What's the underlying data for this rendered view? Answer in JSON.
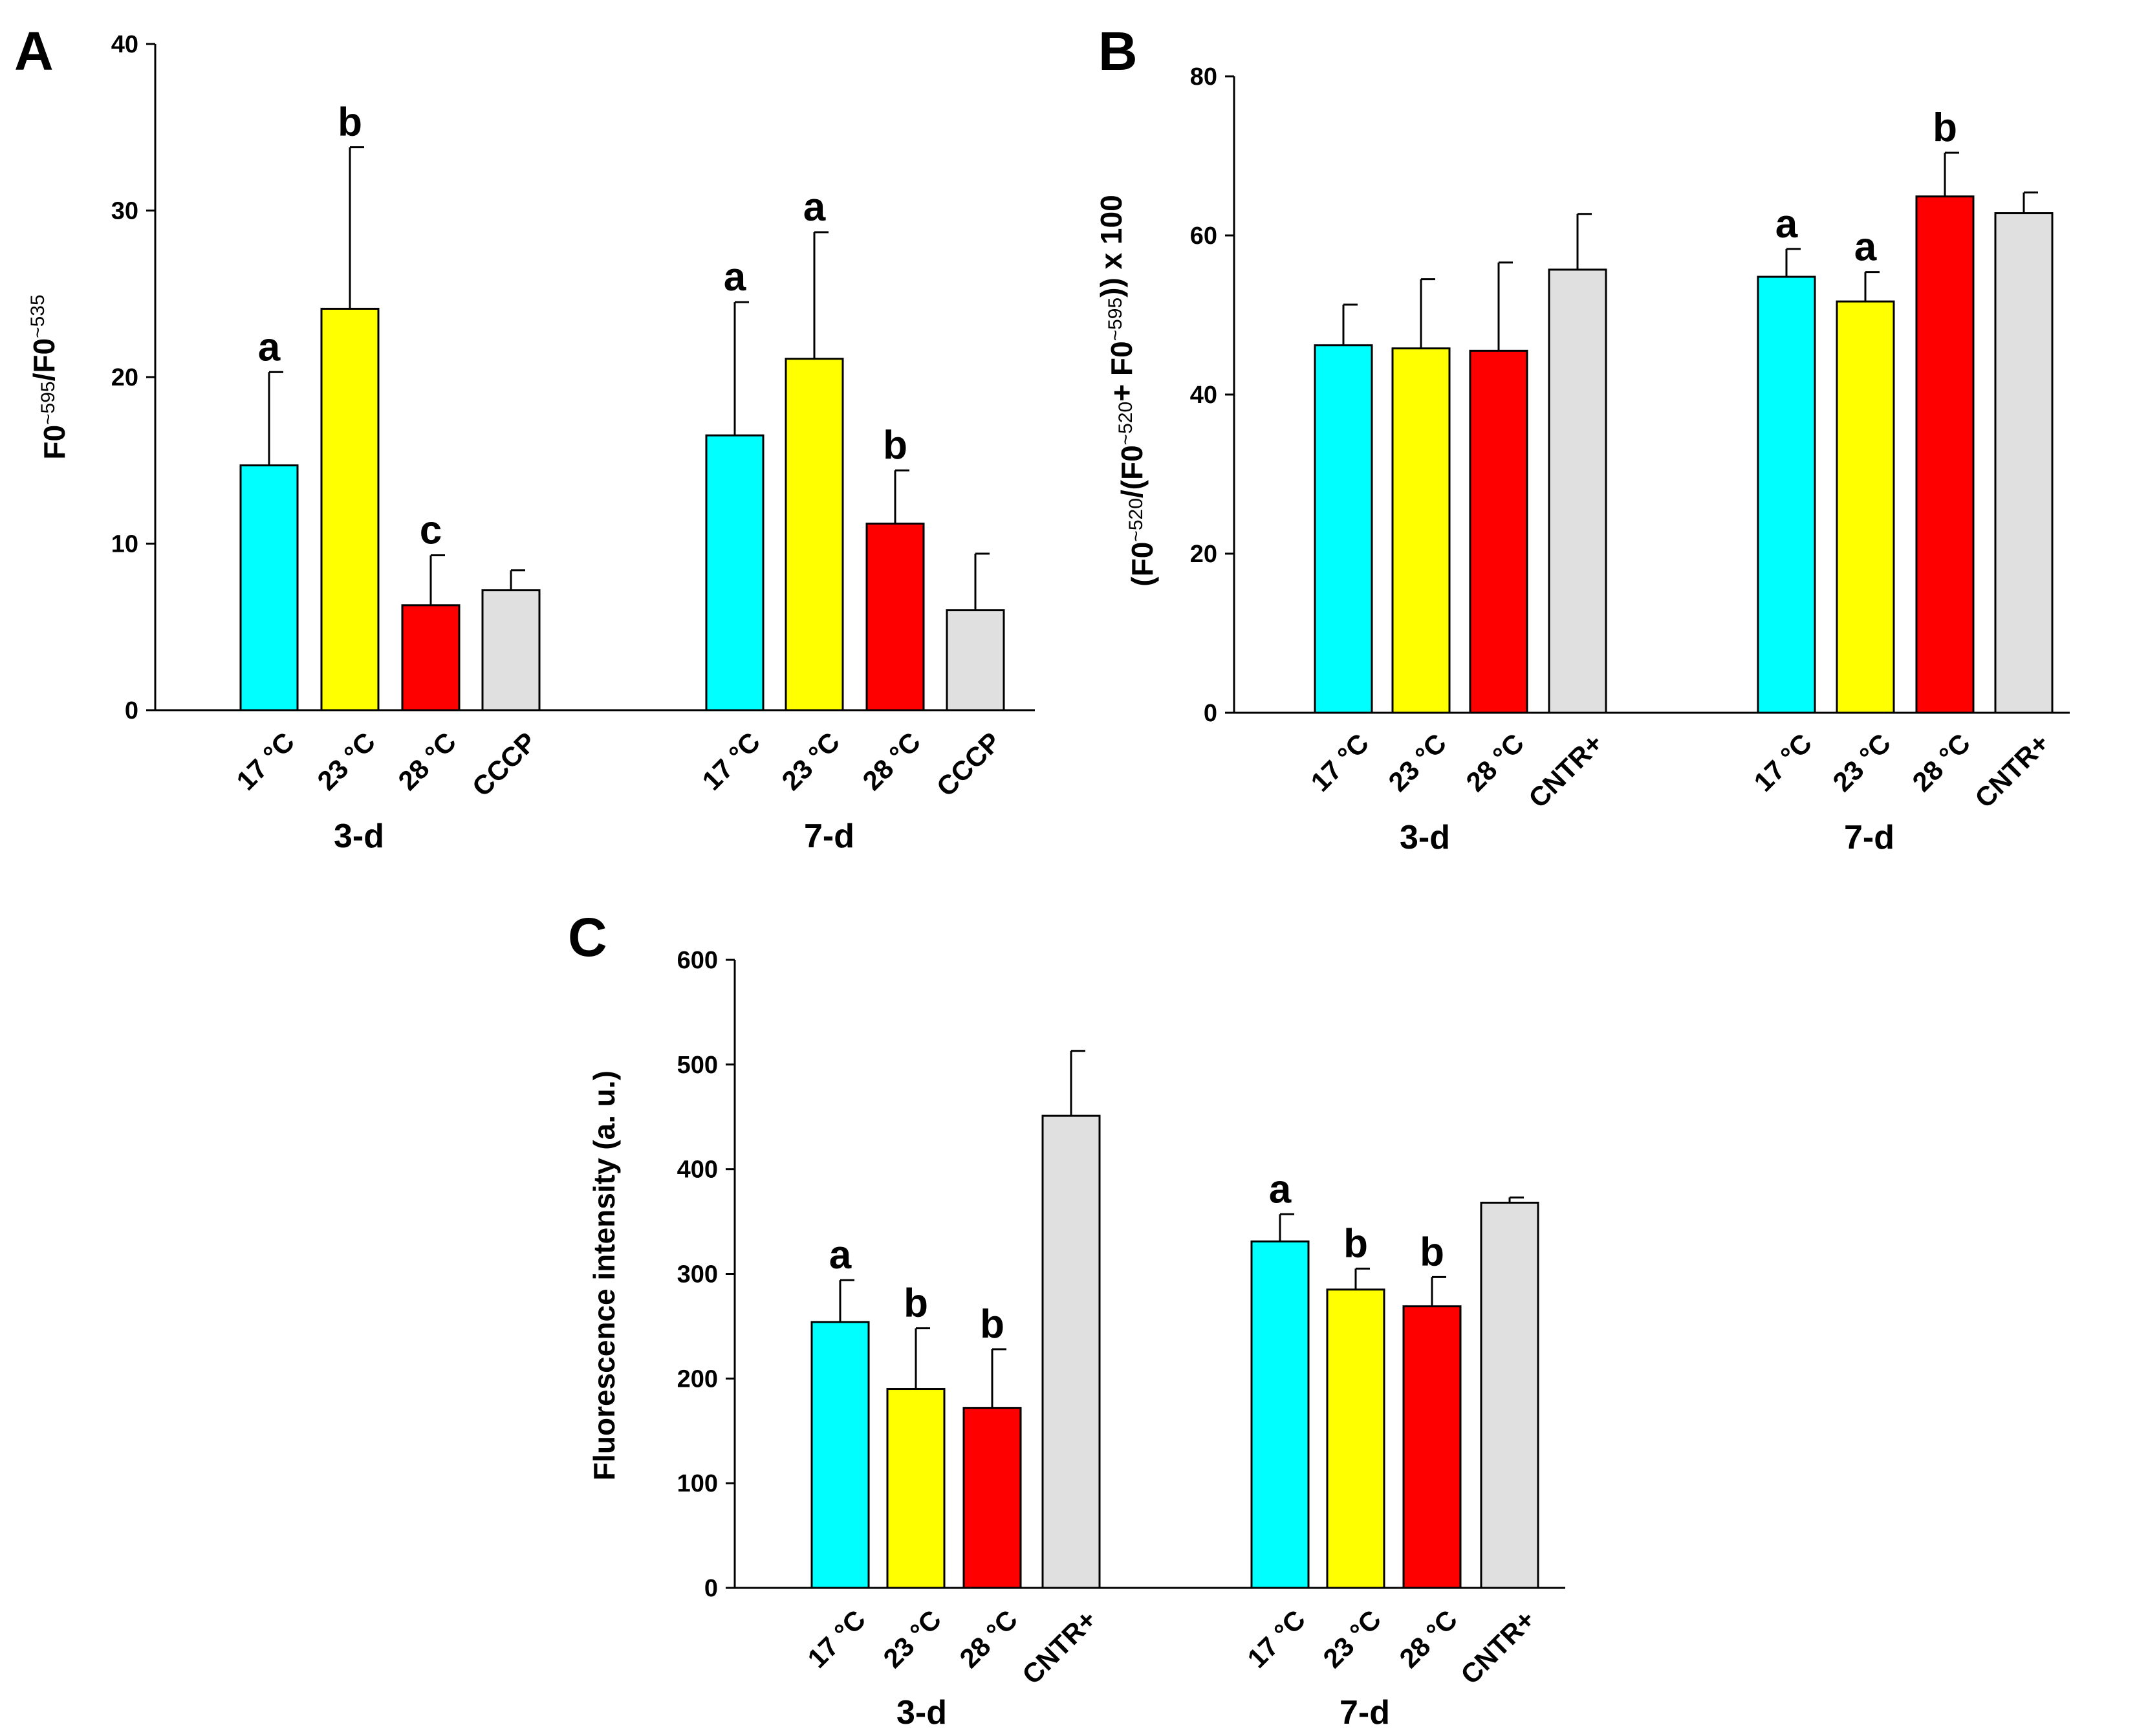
{
  "chart_data": [
    {
      "type": "bar",
      "panel": "A",
      "ylabel": "F0~595/F0~535",
      "ylabel_parts": [
        "F0",
        "~595",
        "/F0",
        "~535"
      ],
      "ylim": [
        0,
        40
      ],
      "yticks": [
        "0",
        "10",
        "20",
        "30",
        "40"
      ],
      "groups": [
        {
          "label": "3-d",
          "bars": [
            {
              "category": "17 °C",
              "value": 14.7,
              "error": 5.6,
              "sig": "a",
              "color": "#00ffff"
            },
            {
              "category": "23 °C",
              "value": 24.1,
              "error": 9.7,
              "sig": "b",
              "color": "#ffff00"
            },
            {
              "category": "28 °C",
              "value": 6.3,
              "error": 3.0,
              "sig": "c",
              "color": "#ff0000"
            },
            {
              "category": "CCCP",
              "value": 7.2,
              "error": 1.2,
              "sig": "",
              "color": "#e0e0e0"
            }
          ]
        },
        {
          "label": "7-d",
          "bars": [
            {
              "category": "17 °C",
              "value": 16.5,
              "error": 8.0,
              "sig": "a",
              "color": "#00ffff"
            },
            {
              "category": "23 °C",
              "value": 21.1,
              "error": 7.6,
              "sig": "a",
              "color": "#ffff00"
            },
            {
              "category": "28 °C",
              "value": 11.2,
              "error": 3.2,
              "sig": "b",
              "color": "#ff0000"
            },
            {
              "category": "CCCP",
              "value": 6.0,
              "error": 3.4,
              "sig": "",
              "color": "#e0e0e0"
            }
          ]
        }
      ]
    },
    {
      "type": "bar",
      "panel": "B",
      "ylabel": "(F0~520/(F0~520+ F0~595)) x 100",
      "ylabel_parts": [
        "(F0",
        "~520",
        "/(F0",
        "~520",
        "+ F0",
        "~595",
        ")) x 100"
      ],
      "ylim": [
        0,
        80
      ],
      "yticks": [
        "0",
        "20",
        "40",
        "60",
        "80"
      ],
      "groups": [
        {
          "label": "3-d",
          "bars": [
            {
              "category": "17 °C",
              "value": 46.2,
              "error": 5.1,
              "sig": "",
              "color": "#00ffff"
            },
            {
              "category": "23 °C",
              "value": 45.8,
              "error": 8.7,
              "sig": "",
              "color": "#ffff00"
            },
            {
              "category": "28 °C",
              "value": 45.5,
              "error": 11.1,
              "sig": "",
              "color": "#ff0000"
            },
            {
              "category": "CNTR+",
              "value": 55.7,
              "error": 7.0,
              "sig": "",
              "color": "#e0e0e0"
            }
          ]
        },
        {
          "label": "7-d",
          "bars": [
            {
              "category": "17 °C",
              "value": 54.8,
              "error": 3.5,
              "sig": "a",
              "color": "#00ffff"
            },
            {
              "category": "23 °C",
              "value": 51.7,
              "error": 3.7,
              "sig": "a",
              "color": "#ffff00"
            },
            {
              "category": "28 °C",
              "value": 64.9,
              "error": 5.5,
              "sig": "b",
              "color": "#ff0000"
            },
            {
              "category": "CNTR+",
              "value": 62.8,
              "error": 2.6,
              "sig": "",
              "color": "#e0e0e0"
            }
          ]
        }
      ]
    },
    {
      "type": "bar",
      "panel": "C",
      "ylabel": "Fluorescence intensity (a. u.)",
      "ylabel_parts": [
        "Fluorescence intensity (a. u.)"
      ],
      "ylim": [
        0,
        600
      ],
      "yticks": [
        "0",
        "100",
        "200",
        "300",
        "400",
        "500",
        "600"
      ],
      "groups": [
        {
          "label": "3-d",
          "bars": [
            {
              "category": "17 °C",
              "value": 254,
              "error": 40,
              "sig": "a",
              "color": "#00ffff"
            },
            {
              "category": "23 °C",
              "value": 190,
              "error": 58,
              "sig": "b",
              "color": "#ffff00"
            },
            {
              "category": "28 °C",
              "value": 172,
              "error": 56,
              "sig": "b",
              "color": "#ff0000"
            },
            {
              "category": "CNTR+",
              "value": 451,
              "error": 62,
              "sig": "",
              "color": "#e0e0e0"
            }
          ]
        },
        {
          "label": "7-d",
          "bars": [
            {
              "category": "17 °C",
              "value": 331,
              "error": 26,
              "sig": "a",
              "color": "#00ffff"
            },
            {
              "category": "23 °C",
              "value": 285,
              "error": 20,
              "sig": "b",
              "color": "#ffff00"
            },
            {
              "category": "28 °C",
              "value": 269,
              "error": 28,
              "sig": "b",
              "color": "#ff0000"
            },
            {
              "category": "CNTR+",
              "value": 368,
              "error": 5,
              "sig": "",
              "color": "#e0e0e0"
            }
          ]
        }
      ]
    }
  ]
}
